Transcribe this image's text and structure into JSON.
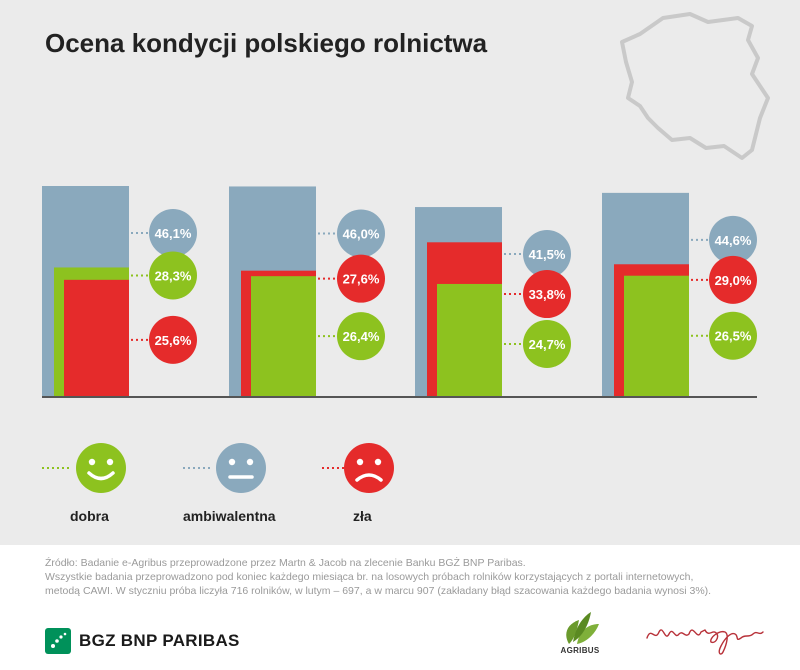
{
  "title": "Ocena kondycji polskiego rolnictwa",
  "colors": {
    "ambiwalentna": "#8aa9bd",
    "zla": "#e52b2b",
    "dobra": "#8dc21f",
    "panel": "#ebebeb",
    "map": "#c9c9c9"
  },
  "chart_data": {
    "type": "bar",
    "categories": [
      "",
      "",
      "",
      ""
    ],
    "series": [
      {
        "name": "ambiwalentna",
        "values": [
          46.1,
          46.0,
          41.5,
          44.6
        ],
        "labels": [
          "46,1%",
          "46,0%",
          "41,5%",
          "44,6%"
        ]
      },
      {
        "name": "zła",
        "values": [
          25.6,
          27.6,
          33.8,
          29.0
        ],
        "labels": [
          "25,6%",
          "27,6%",
          "33,8%",
          "29,0%"
        ]
      },
      {
        "name": "dobra",
        "values": [
          28.3,
          26.4,
          24.7,
          26.5
        ],
        "labels": [
          "28,3%",
          "26,4%",
          "24,7%",
          "26,5%"
        ]
      }
    ],
    "ylim": [
      0,
      46.1
    ]
  },
  "legend": {
    "dobra": {
      "label": "dobra",
      "icon": "smiley-icon"
    },
    "ambiwalentna": {
      "label": "ambiwalentna",
      "icon": "neutral-face-icon"
    },
    "zla": {
      "label": "zła",
      "icon": "sad-face-icon"
    }
  },
  "source": {
    "line1": "Źródło: Badanie e-Agribus przeprowadzone przez Martn & Jacob na zlecenie Banku BGŻ BNP Paribas.",
    "line2": "Wszystkie badania przeprowadzono pod koniec każdego miesiąca br. na losowych próbach rolników korzystających z portali internetowych,",
    "line3": "metodą CAWI. W styczniu próba liczyła 716 rolników, w lutym – 697, a w marcu 907 (zakładany błąd szacowania każdego badania wynosi 3%)."
  },
  "logos": {
    "bank": "BGZ BNP PARIBAS",
    "agribus": "AGRIBUS",
    "signature": "martin&Jacob"
  }
}
